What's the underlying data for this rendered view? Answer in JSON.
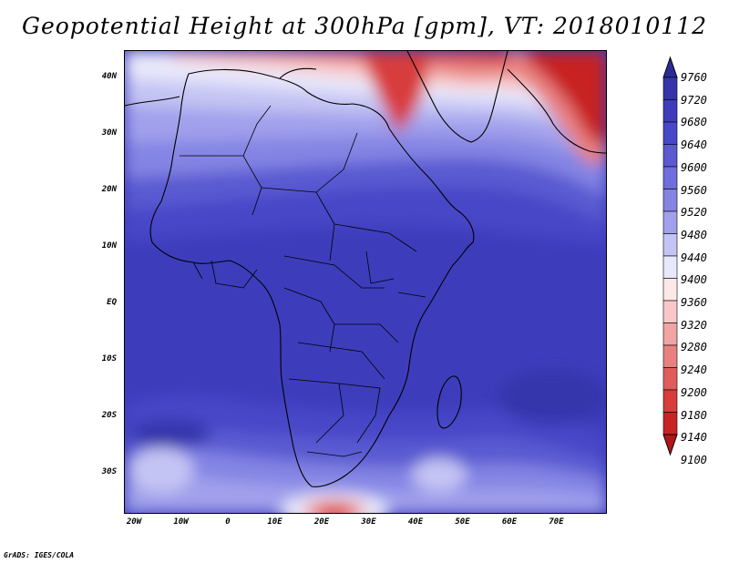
{
  "title": "Geopotential Height at 300hPa [gpm], VT: 2018010112",
  "credit": "GrADS: IGES/COLA",
  "lat_ticks": [
    {
      "label": "40N",
      "value": 40
    },
    {
      "label": "30N",
      "value": 30
    },
    {
      "label": "20N",
      "value": 20
    },
    {
      "label": "10N",
      "value": 10
    },
    {
      "label": "EQ",
      "value": 0
    },
    {
      "label": "10S",
      "value": -10
    },
    {
      "label": "20S",
      "value": -20
    },
    {
      "label": "30S",
      "value": -30
    }
  ],
  "lon_ticks": [
    {
      "label": "20W",
      "value": -20
    },
    {
      "label": "10W",
      "value": -10
    },
    {
      "label": "0",
      "value": 0
    },
    {
      "label": "10E",
      "value": 10
    },
    {
      "label": "20E",
      "value": 20
    },
    {
      "label": "30E",
      "value": 30
    },
    {
      "label": "40E",
      "value": 40
    },
    {
      "label": "50E",
      "value": 50
    },
    {
      "label": "60E",
      "value": 60
    },
    {
      "label": "70E",
      "value": 70
    }
  ],
  "colorbar": {
    "labels": [
      "9760",
      "9720",
      "9680",
      "9640",
      "9600",
      "9560",
      "9520",
      "9480",
      "9440",
      "9400",
      "9360",
      "9320",
      "9280",
      "9240",
      "9200",
      "9180",
      "9140",
      "9100"
    ],
    "colors": [
      "#2b2b98",
      "#3434ac",
      "#3d3dbc",
      "#4747c8",
      "#5a5ad2",
      "#6e6edc",
      "#8484e4",
      "#a0a0ec",
      "#c4c4f4",
      "#e8e8fb",
      "#fde8e8",
      "#f8c8c8",
      "#f0a4a4",
      "#e88080",
      "#e05c5c",
      "#d83c3c",
      "#c82424",
      "#b01818"
    ]
  }
}
